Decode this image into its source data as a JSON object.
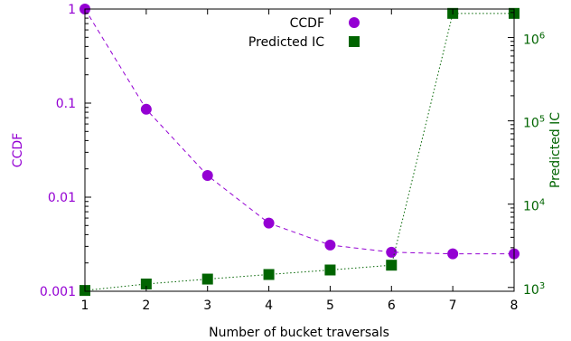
{
  "chart_data": {
    "type": "scatter",
    "title": "",
    "xlabel": "Number of bucket traversals",
    "ylabel": "CCDF",
    "y2label": "Predicted IC",
    "x": [
      1,
      2,
      3,
      4,
      5,
      6,
      7,
      8
    ],
    "xlim": [
      1,
      8
    ],
    "ylim": [
      0.001,
      1
    ],
    "y2lim": [
      900,
      2200000
    ],
    "yscale": "log",
    "y2scale": "log",
    "x_tick_labels": [
      "1",
      "2",
      "3",
      "4",
      "5",
      "6",
      "7",
      "8"
    ],
    "y_tick_values": [
      0.001,
      0.01,
      0.1,
      1
    ],
    "y_tick_labels": [
      "0.001",
      "0.01",
      "0.1",
      "1"
    ],
    "y2_tick_values": [
      1000,
      10000,
      100000,
      1000000
    ],
    "y2_tick_labels": [
      {
        "base": "10",
        "exp": "3"
      },
      {
        "base": "10",
        "exp": "4"
      },
      {
        "base": "10",
        "exp": "5"
      },
      {
        "base": "10",
        "exp": "6"
      }
    ],
    "grid": false,
    "legend_position": "top-right",
    "series": [
      {
        "name": "CCDF",
        "axis": "left",
        "marker": "circle",
        "line_style": "dashed",
        "color": "#9400d3",
        "values": [
          1.0,
          0.086,
          0.017,
          0.0053,
          0.0031,
          0.0026,
          0.0025,
          0.0025
        ]
      },
      {
        "name": "Predicted IC",
        "axis": "right",
        "marker": "square",
        "line_style": "dotted",
        "color": "#006400",
        "values": [
          920,
          1100,
          1260,
          1430,
          1620,
          1850,
          1950000,
          1950000
        ]
      }
    ]
  }
}
